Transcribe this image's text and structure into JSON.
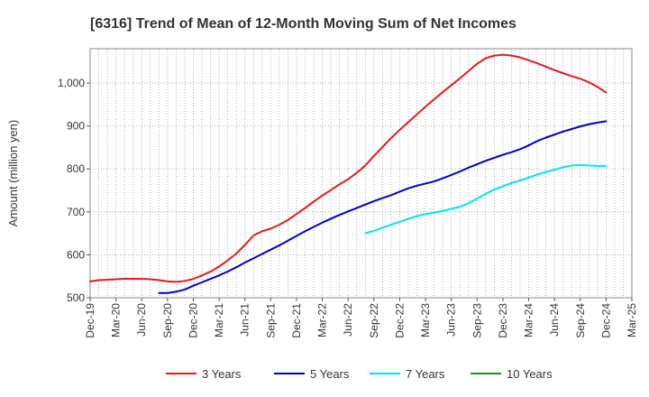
{
  "chart_data": {
    "type": "line",
    "title": "[6316]  Trend of Mean of 12-Month Moving Sum of Net Incomes",
    "xlabel": "",
    "ylabel": "Amount (million yen)",
    "ylim": [
      500,
      1080
    ],
    "yticks": [
      500,
      600,
      700,
      800,
      900,
      1000
    ],
    "ytick_labels": [
      "500",
      "600",
      "700",
      "800",
      "900",
      "1,000"
    ],
    "xtick_labels": [
      "Dec-19",
      "Mar-20",
      "Jun-20",
      "Sep-20",
      "Dec-20",
      "Mar-21",
      "Jun-21",
      "Sep-21",
      "Dec-21",
      "Mar-22",
      "Jun-22",
      "Sep-22",
      "Dec-22",
      "Mar-23",
      "Jun-23",
      "Sep-23",
      "Dec-23",
      "Mar-24",
      "Jun-24",
      "Sep-24",
      "Dec-24",
      "Mar-25"
    ],
    "grid": true,
    "legend_position": "bottom",
    "series": [
      {
        "name": "3 Years",
        "color": "#e41a1c",
        "x": [
          "Dec-19",
          "Jan-20",
          "Feb-20",
          "Mar-20",
          "Apr-20",
          "May-20",
          "Jun-20",
          "Jul-20",
          "Aug-20",
          "Sep-20",
          "Oct-20",
          "Nov-20",
          "Dec-20",
          "Jan-21",
          "Feb-21",
          "Mar-21",
          "Apr-21",
          "May-21",
          "Jun-21",
          "Jul-21",
          "Aug-21",
          "Sep-21",
          "Oct-21",
          "Nov-21",
          "Dec-21",
          "Jan-22",
          "Feb-22",
          "Mar-22",
          "Apr-22",
          "May-22",
          "Jun-22",
          "Jul-22",
          "Aug-22",
          "Sep-22",
          "Oct-22",
          "Nov-22",
          "Dec-22",
          "Jan-23",
          "Feb-23",
          "Mar-23",
          "Apr-23",
          "May-23",
          "Jun-23",
          "Jul-23",
          "Aug-23",
          "Sep-23",
          "Oct-23",
          "Nov-23",
          "Dec-23",
          "Jan-24",
          "Feb-24",
          "Mar-24",
          "Apr-24",
          "May-24",
          "Jun-24",
          "Jul-24",
          "Aug-24",
          "Sep-24",
          "Oct-24",
          "Nov-24",
          "Dec-24"
        ],
        "values": [
          538,
          541,
          542,
          543,
          544,
          544,
          544,
          543,
          541,
          538,
          537,
          539,
          544,
          552,
          561,
          573,
          587,
          603,
          623,
          645,
          655,
          661,
          670,
          681,
          695,
          709,
          724,
          738,
          751,
          764,
          776,
          791,
          808,
          830,
          851,
          872,
          891,
          909,
          927,
          945,
          962,
          979,
          995,
          1011,
          1028,
          1045,
          1058,
          1064,
          1066,
          1064,
          1060,
          1053,
          1046,
          1038,
          1030,
          1023,
          1016,
          1010,
          1002,
          991,
          978
        ]
      },
      {
        "name": "5 Years",
        "color": "#0000cc",
        "x": [
          "Aug-20",
          "Sep-20",
          "Oct-20",
          "Nov-20",
          "Dec-20",
          "Jan-21",
          "Feb-21",
          "Mar-21",
          "Apr-21",
          "May-21",
          "Jun-21",
          "Jul-21",
          "Aug-21",
          "Sep-21",
          "Oct-21",
          "Nov-21",
          "Dec-21",
          "Jan-22",
          "Feb-22",
          "Mar-22",
          "Apr-22",
          "May-22",
          "Jun-22",
          "Jul-22",
          "Aug-22",
          "Sep-22",
          "Oct-22",
          "Nov-22",
          "Dec-22",
          "Jan-23",
          "Feb-23",
          "Mar-23",
          "Apr-23",
          "May-23",
          "Jun-23",
          "Jul-23",
          "Aug-23",
          "Sep-23",
          "Oct-23",
          "Nov-23",
          "Dec-23",
          "Jan-24",
          "Feb-24",
          "Mar-24",
          "Apr-24",
          "May-24",
          "Jun-24",
          "Jul-24",
          "Aug-24",
          "Sep-24",
          "Oct-24",
          "Nov-24",
          "Dec-24"
        ],
        "values": [
          511,
          511,
          514,
          519,
          528,
          536,
          544,
          552,
          561,
          571,
          582,
          592,
          602,
          612,
          622,
          633,
          644,
          655,
          665,
          675,
          684,
          693,
          701,
          709,
          717,
          725,
          732,
          739,
          747,
          755,
          761,
          766,
          771,
          778,
          786,
          794,
          803,
          811,
          819,
          826,
          833,
          839,
          846,
          855,
          865,
          873,
          880,
          887,
          893,
          899,
          904,
          908,
          911
        ]
      },
      {
        "name": "7 Years",
        "color": "#00e5ee",
        "x": [
          "Aug-22",
          "Sep-22",
          "Oct-22",
          "Nov-22",
          "Dec-22",
          "Jan-23",
          "Feb-23",
          "Mar-23",
          "Apr-23",
          "May-23",
          "Jun-23",
          "Jul-23",
          "Aug-23",
          "Sep-23",
          "Oct-23",
          "Nov-23",
          "Dec-23",
          "Jan-24",
          "Feb-24",
          "Mar-24",
          "Apr-24",
          "May-24",
          "Jun-24",
          "Jul-24",
          "Aug-24",
          "Sep-24",
          "Oct-24",
          "Nov-24",
          "Dec-24"
        ],
        "values": [
          650,
          656,
          663,
          670,
          677,
          684,
          690,
          695,
          698,
          702,
          707,
          712,
          720,
          731,
          742,
          752,
          760,
          767,
          773,
          780,
          787,
          793,
          798,
          804,
          808,
          809,
          808,
          807,
          807
        ]
      },
      {
        "name": "10 Years",
        "color": "#228b22",
        "x": [],
        "values": []
      }
    ]
  }
}
